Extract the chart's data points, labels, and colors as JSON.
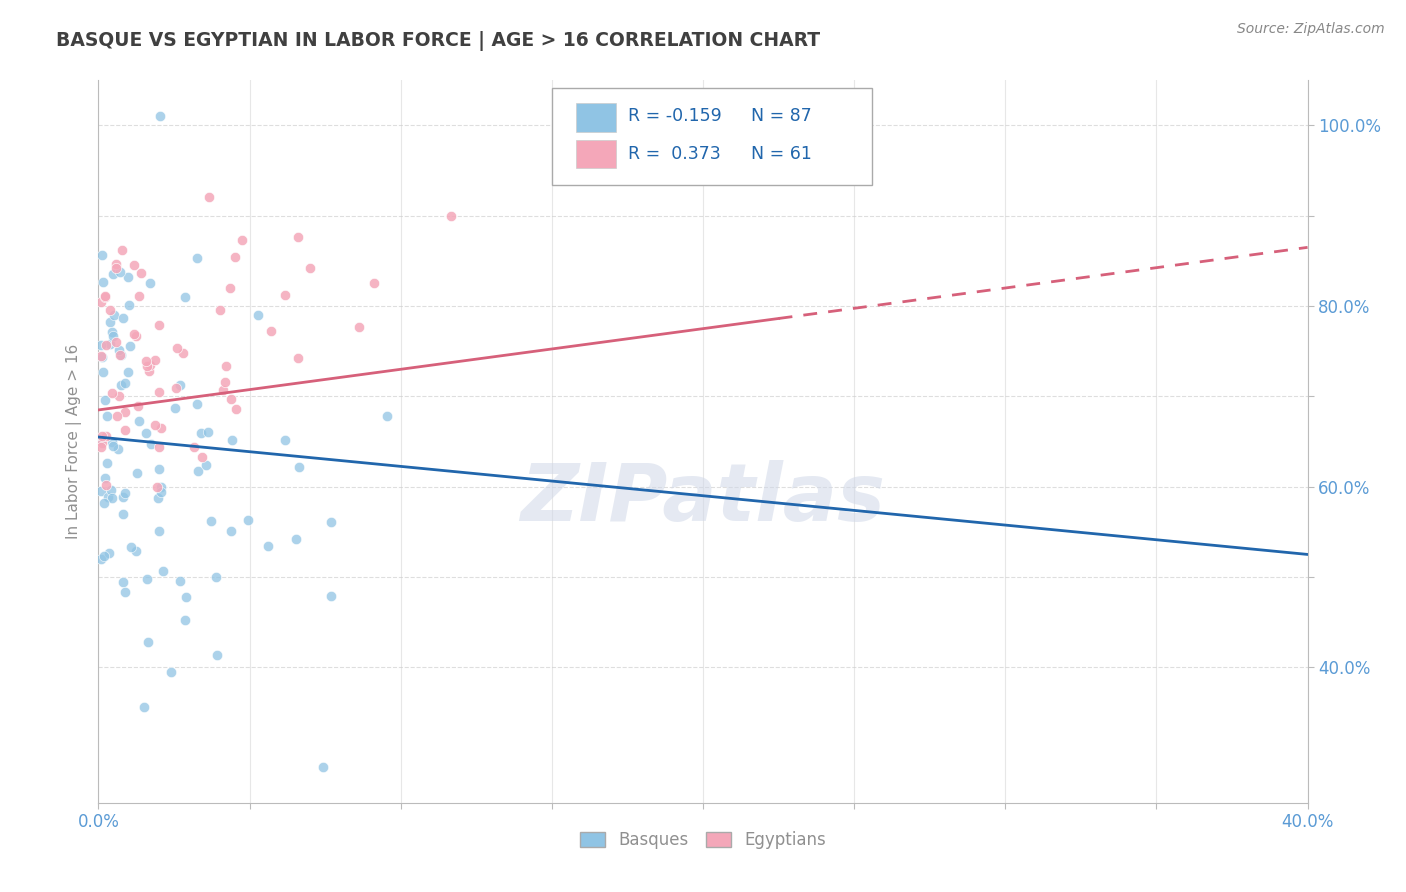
{
  "title": "BASQUE VS EGYPTIAN IN LABOR FORCE | AGE > 16 CORRELATION CHART",
  "source_text": "Source: ZipAtlas.com",
  "ylabel": "In Labor Force | Age > 16",
  "xlim": [
    0.0,
    0.4
  ],
  "ylim": [
    0.25,
    1.05
  ],
  "xticks": [
    0.0,
    0.05,
    0.1,
    0.15,
    0.2,
    0.25,
    0.3,
    0.35,
    0.4
  ],
  "yticks": [
    0.4,
    0.5,
    0.6,
    0.7,
    0.8,
    0.9,
    1.0
  ],
  "yticklabels_right": [
    "40.0%",
    "",
    "60.0%",
    "",
    "80.0%",
    "",
    "100.0%"
  ],
  "blue_color": "#90c4e4",
  "pink_color": "#f4a7b9",
  "blue_line_color": "#2166ac",
  "pink_line_color": "#d6607a",
  "watermark": "ZIPatlas",
  "blue_R": -0.159,
  "blue_N": 87,
  "pink_R": 0.373,
  "pink_N": 61,
  "blue_seed": 42,
  "pink_seed": 99,
  "background_color": "#ffffff",
  "grid_color": "#d0d0d0",
  "title_color": "#404040",
  "tick_color": "#5b9bd5",
  "label_color": "#909090",
  "legend_text_color": "#2166ac"
}
